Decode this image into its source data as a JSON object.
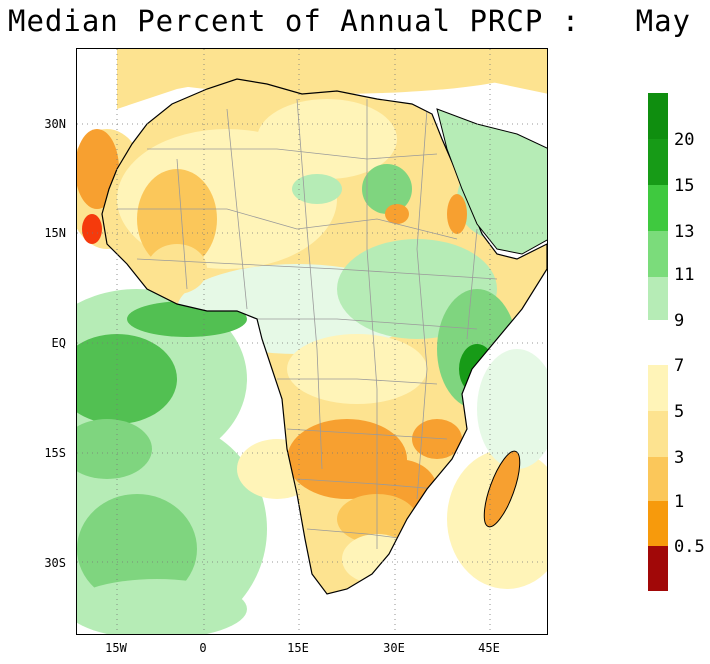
{
  "title": "Median Percent of Annual PRCP :   May",
  "axes": {
    "y_ticks": [
      "30N",
      "15N",
      "EQ",
      "15S",
      "30S"
    ],
    "x_ticks": [
      "15W",
      "0",
      "15E",
      "30E",
      "45E"
    ]
  },
  "legend": {
    "upper": [
      {
        "label": "20",
        "color": "#179b17"
      },
      {
        "label": "15",
        "color": "#3fc93f"
      },
      {
        "label": "13",
        "color": "#7bdc7b"
      },
      {
        "label": "11",
        "color": "#b6ecb6"
      },
      {
        "label": "9",
        "color": "#e6f9e6"
      }
    ],
    "upper_top_color": "#0f8e0f",
    "lower": [
      {
        "label": "7",
        "color": "#fff4b8"
      },
      {
        "label": "5",
        "color": "#fde390"
      },
      {
        "label": "3",
        "color": "#fbc75a"
      },
      {
        "label": "1",
        "color": "#f79a0c"
      },
      {
        "label": "0.5",
        "color": "#f53a0c"
      }
    ],
    "lower_bottom_color": "#a10808"
  },
  "map_colors": {
    "ocean_dark_green": "#52c052",
    "ocean_green": "#7fd57f",
    "ocean_light_green": "#b6ecb6",
    "ocean_pale": "#e6f9e6",
    "land_pale_yellow": "#fff4b8",
    "land_yellow": "#fde390",
    "land_tan": "#fbc75a",
    "land_orange": "#f7a030",
    "land_red": "#f53a0c",
    "boundary": "#9a9a9a",
    "coast": "#000000"
  }
}
